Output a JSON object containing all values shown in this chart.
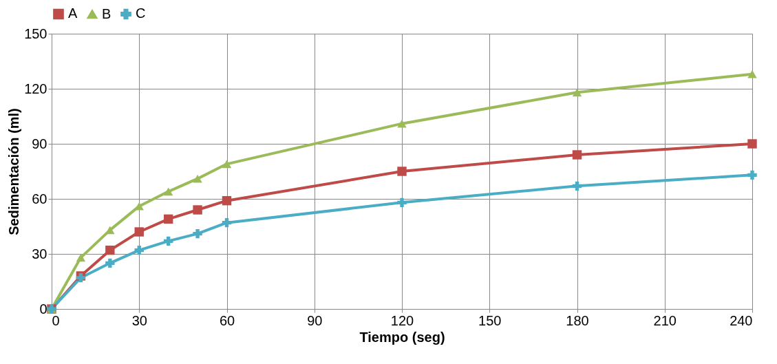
{
  "chart_data": {
    "type": "line",
    "xlabel": "Tiempo (seg)",
    "ylabel": "Sedimentación (ml)",
    "x": [
      0,
      10,
      20,
      30,
      40,
      50,
      60,
      120,
      180,
      240
    ],
    "series": [
      {
        "name": "A",
        "color": "#be4b48",
        "marker": "square",
        "values": [
          0,
          18,
          32,
          42,
          49,
          54,
          59,
          75,
          84,
          90
        ]
      },
      {
        "name": "B",
        "color": "#9bbb59",
        "marker": "triangle",
        "values": [
          0,
          28,
          43,
          56,
          64,
          71,
          79,
          101,
          118,
          128
        ]
      },
      {
        "name": "C",
        "color": "#4bacc6",
        "marker": "cross",
        "values": [
          0,
          17,
          25,
          32,
          37,
          41,
          47,
          58,
          67,
          73
        ]
      }
    ],
    "xlim": [
      0,
      240
    ],
    "xticks": [
      0,
      30,
      60,
      90,
      120,
      150,
      180,
      210,
      240
    ],
    "ylim": [
      0,
      150
    ],
    "yticks": [
      0,
      30,
      60,
      90,
      120,
      150
    ],
    "grid": true,
    "legend": "top",
    "line_style": "solid"
  }
}
